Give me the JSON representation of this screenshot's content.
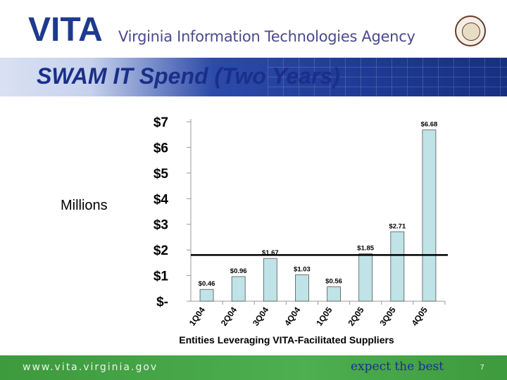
{
  "header": {
    "logo_text": "VITA",
    "agency_name": "Virginia Information Technologies Agency",
    "seal": "virginia-state-seal"
  },
  "slide": {
    "title": "SWAM IT Spend (Two Years)",
    "y_unit_label": "Millions"
  },
  "chart_data": {
    "type": "bar",
    "categories": [
      "1Q04",
      "2Q04",
      "3Q04",
      "4Q04",
      "1Q05",
      "2Q05",
      "3Q05",
      "4Q05"
    ],
    "values": [
      0.46,
      0.96,
      1.67,
      1.03,
      0.56,
      1.85,
      2.71,
      6.68
    ],
    "bar_labels": [
      "$0.46",
      "$0.96",
      "$1.67",
      "$1.03",
      "$0.56",
      "$1.85",
      "$2.71",
      "$6.68"
    ],
    "y_ticks": [
      "$-",
      "$1",
      "$2",
      "$3",
      "$4",
      "$5",
      "$6",
      "$7"
    ],
    "y_tick_values": [
      0,
      1,
      2,
      3,
      4,
      5,
      6,
      7
    ],
    "ylim": [
      0,
      7
    ],
    "reference_line_value": 1.8,
    "xlabel": "Entities Leveraging VITA-Facilitated Suppliers",
    "ylabel": "Millions",
    "title": "",
    "bar_color": "#bfe3e6",
    "grid": false
  },
  "footer": {
    "url": "www.vita.virginia.gov",
    "tagline": "expect the best",
    "page_number": "7"
  }
}
